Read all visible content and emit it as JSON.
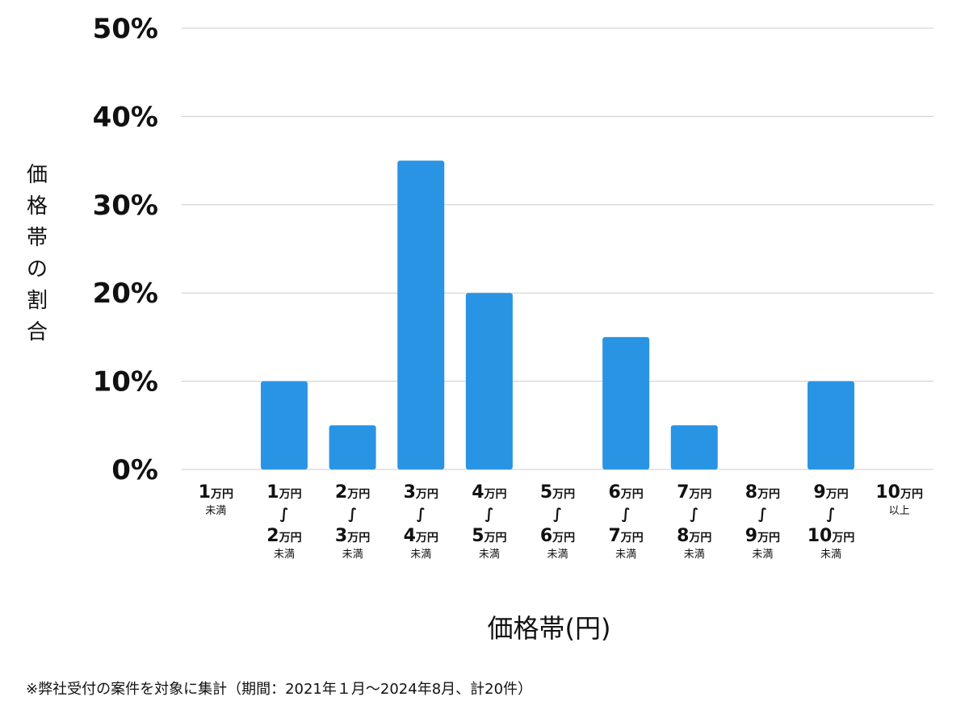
{
  "chart_data": {
    "type": "bar",
    "xlabel": "価格帯(円)",
    "ylabel": "価格帯の割合",
    "ylim": [
      0,
      50
    ],
    "yticks": [
      "0%",
      "10%",
      "20%",
      "30%",
      "40%",
      "50%"
    ],
    "ytick_values": [
      0,
      10,
      20,
      30,
      40,
      50
    ],
    "grid": true,
    "bar_color": "#2A94E4",
    "grid_color": "#CCCCCC",
    "categories": [
      "1万円未満",
      "1万円〜2万円未満",
      "2万円〜3万円未満",
      "3万円〜4万円未満",
      "4万円〜5万円未満",
      "5万円〜6万円未満",
      "6万円〜7万円未満",
      "7万円〜8万円未満",
      "8万円〜9万円未満",
      "9万円〜10万円未満",
      "10万円以上"
    ],
    "category_labels": [
      {
        "from": "1",
        "to": null,
        "suffix": "未満"
      },
      {
        "from": "1",
        "to": "2",
        "suffix": "未満"
      },
      {
        "from": "2",
        "to": "3",
        "suffix": "未満"
      },
      {
        "from": "3",
        "to": "4",
        "suffix": "未満"
      },
      {
        "from": "4",
        "to": "5",
        "suffix": "未満"
      },
      {
        "from": "5",
        "to": "6",
        "suffix": "未満"
      },
      {
        "from": "6",
        "to": "7",
        "suffix": "未満"
      },
      {
        "from": "7",
        "to": "8",
        "suffix": "未満"
      },
      {
        "from": "8",
        "to": "9",
        "suffix": "未満"
      },
      {
        "from": "9",
        "to": "10",
        "suffix": "未満"
      },
      {
        "from": "10",
        "to": null,
        "suffix": "以上"
      }
    ],
    "unit_label": "万円",
    "tilde_glyph": "∫",
    "values": [
      0,
      10,
      5,
      35,
      20,
      0,
      15,
      5,
      0,
      10,
      0
    ]
  },
  "footnote": "※弊社受付の案件を対象に集計（期間：2021年１月〜2024年8月、計20件）"
}
